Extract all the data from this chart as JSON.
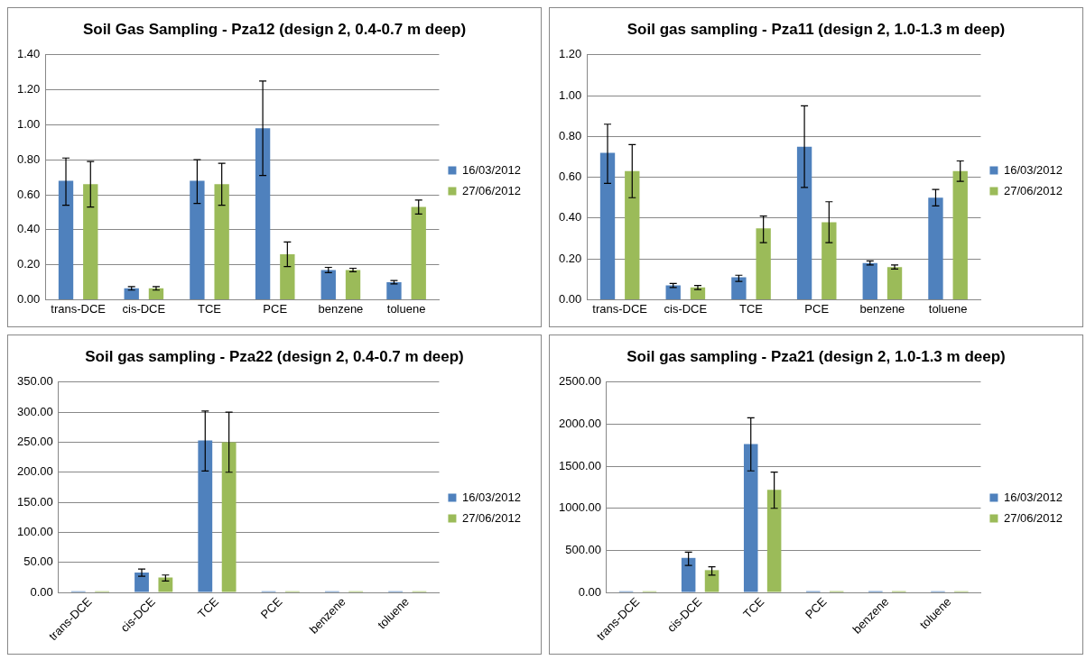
{
  "chart_data": [
    {
      "type": "bar",
      "title": "Soil Gas Sampling - Pza12 (design 2, 0.4-0.7 m deep)",
      "categories": [
        "trans-DCE",
        "cis-DCE",
        "TCE",
        "PCE",
        "benzene",
        "toluene"
      ],
      "series": [
        {
          "name": "16/03/2012",
          "color": "#4f81bd",
          "values": [
            0.68,
            0.065,
            0.68,
            0.98,
            0.17,
            0.1
          ],
          "errors": [
            [
              0.54,
              0.81
            ],
            [
              0.055,
              0.075
            ],
            [
              0.55,
              0.8
            ],
            [
              0.71,
              1.25
            ],
            [
              0.155,
              0.185
            ],
            [
              0.09,
              0.11
            ]
          ]
        },
        {
          "name": "27/06/2012",
          "color": "#9bbb59",
          "values": [
            0.66,
            0.065,
            0.66,
            0.26,
            0.17,
            0.53
          ],
          "errors": [
            [
              0.53,
              0.79
            ],
            [
              0.055,
              0.075
            ],
            [
              0.54,
              0.78
            ],
            [
              0.19,
              0.33
            ],
            [
              0.16,
              0.18
            ],
            [
              0.49,
              0.57
            ]
          ]
        }
      ],
      "ylim": [
        0,
        1.4
      ],
      "yticks": [
        {
          "value": 0,
          "label": "0.00"
        },
        {
          "value": 0.2,
          "label": "0.20"
        },
        {
          "value": 0.4,
          "label": "0.40"
        },
        {
          "value": 0.6,
          "label": "0.60"
        },
        {
          "value": 0.8,
          "label": "0.80"
        },
        {
          "value": 1,
          "label": "1.00"
        },
        {
          "value": 1.2,
          "label": "1.20"
        },
        {
          "value": 1.4,
          "label": "1.40"
        }
      ],
      "grid": "y",
      "legend": "right"
    },
    {
      "type": "bar",
      "title": "Soil gas sampling - Pza11 (design 2, 1.0-1.3 m deep)",
      "categories": [
        "trans-DCE",
        "cis-DCE",
        "TCE",
        "PCE",
        "benzene",
        "toluene"
      ],
      "series": [
        {
          "name": "16/03/2012",
          "color": "#4f81bd",
          "values": [
            0.72,
            0.07,
            0.11,
            0.75,
            0.18,
            0.5
          ],
          "errors": [
            [
              0.57,
              0.86
            ],
            [
              0.06,
              0.08
            ],
            [
              0.09,
              0.12
            ],
            [
              0.55,
              0.95
            ],
            [
              0.17,
              0.19
            ],
            [
              0.46,
              0.54
            ]
          ]
        },
        {
          "name": "27/06/2012",
          "color": "#9bbb59",
          "values": [
            0.63,
            0.06,
            0.35,
            0.38,
            0.16,
            0.63
          ],
          "errors": [
            [
              0.5,
              0.76
            ],
            [
              0.05,
              0.07
            ],
            [
              0.28,
              0.41
            ],
            [
              0.28,
              0.48
            ],
            [
              0.15,
              0.17
            ],
            [
              0.58,
              0.68
            ]
          ]
        }
      ],
      "ylim": [
        0,
        1.2
      ],
      "yticks": [
        {
          "value": 0,
          "label": "0.00"
        },
        {
          "value": 0.2,
          "label": "0.20"
        },
        {
          "value": 0.4,
          "label": "0.40"
        },
        {
          "value": 0.6,
          "label": "0.60"
        },
        {
          "value": 0.8,
          "label": "0.80"
        },
        {
          "value": 1,
          "label": "1.00"
        },
        {
          "value": 1.2,
          "label": "1.20"
        }
      ],
      "grid": "y",
      "legend": "right"
    },
    {
      "type": "bar",
      "title": "Soil gas sampling - Pza22 (design 2, 0.4-0.7 m deep)",
      "categories": [
        "trans-DCE",
        "cis-DCE",
        "TCE",
        "PCE",
        "benzene",
        "toluene"
      ],
      "series": [
        {
          "name": "16/03/2012",
          "color": "#4f81bd",
          "values": [
            2,
            33,
            253,
            2,
            2,
            2
          ],
          "errors": [
            null,
            [
              27,
              39
            ],
            [
              202,
              302
            ],
            null,
            null,
            null
          ]
        },
        {
          "name": "27/06/2012",
          "color": "#9bbb59",
          "values": [
            2,
            25,
            250,
            2,
            2,
            2
          ],
          "errors": [
            null,
            [
              19,
              29
            ],
            [
              200,
              300
            ],
            null,
            null,
            null
          ]
        }
      ],
      "ylim": [
        0,
        350
      ],
      "yticks": [
        {
          "value": 0,
          "label": "0.00"
        },
        {
          "value": 50,
          "label": "50.00"
        },
        {
          "value": 100,
          "label": "100.00"
        },
        {
          "value": 150,
          "label": "150.00"
        },
        {
          "value": 200,
          "label": "200.00"
        },
        {
          "value": 250,
          "label": "250.00"
        },
        {
          "value": 300,
          "label": "300.00"
        },
        {
          "value": 350,
          "label": "350.00"
        }
      ],
      "grid": "y",
      "legend": "right"
    },
    {
      "type": "bar",
      "title": "Soil gas sampling - Pza21 (design 2, 1.0-1.3 m deep)",
      "categories": [
        "trans-DCE",
        "cis-DCE",
        "TCE",
        "PCE",
        "benzene",
        "toluene"
      ],
      "series": [
        {
          "name": "16/03/2012",
          "color": "#4f81bd",
          "values": [
            15,
            410,
            1765,
            15,
            15,
            15
          ],
          "errors": [
            null,
            [
              320,
              480
            ],
            [
              1445,
              2075
            ],
            null,
            null,
            null
          ]
        },
        {
          "name": "27/06/2012",
          "color": "#9bbb59",
          "values": [
            15,
            265,
            1220,
            15,
            15,
            15
          ],
          "errors": [
            null,
            [
              205,
              305
            ],
            [
              1000,
              1430
            ],
            null,
            null,
            null
          ]
        }
      ],
      "ylim": [
        0,
        2500
      ],
      "yticks": [
        {
          "value": 0,
          "label": "0.00"
        },
        {
          "value": 500,
          "label": "500.00"
        },
        {
          "value": 1000,
          "label": "1000.00"
        },
        {
          "value": 1500,
          "label": "1500.00"
        },
        {
          "value": 2000,
          "label": "2000.00"
        },
        {
          "value": 2500,
          "label": "2500.00"
        }
      ],
      "grid": "y",
      "legend": "right"
    }
  ]
}
